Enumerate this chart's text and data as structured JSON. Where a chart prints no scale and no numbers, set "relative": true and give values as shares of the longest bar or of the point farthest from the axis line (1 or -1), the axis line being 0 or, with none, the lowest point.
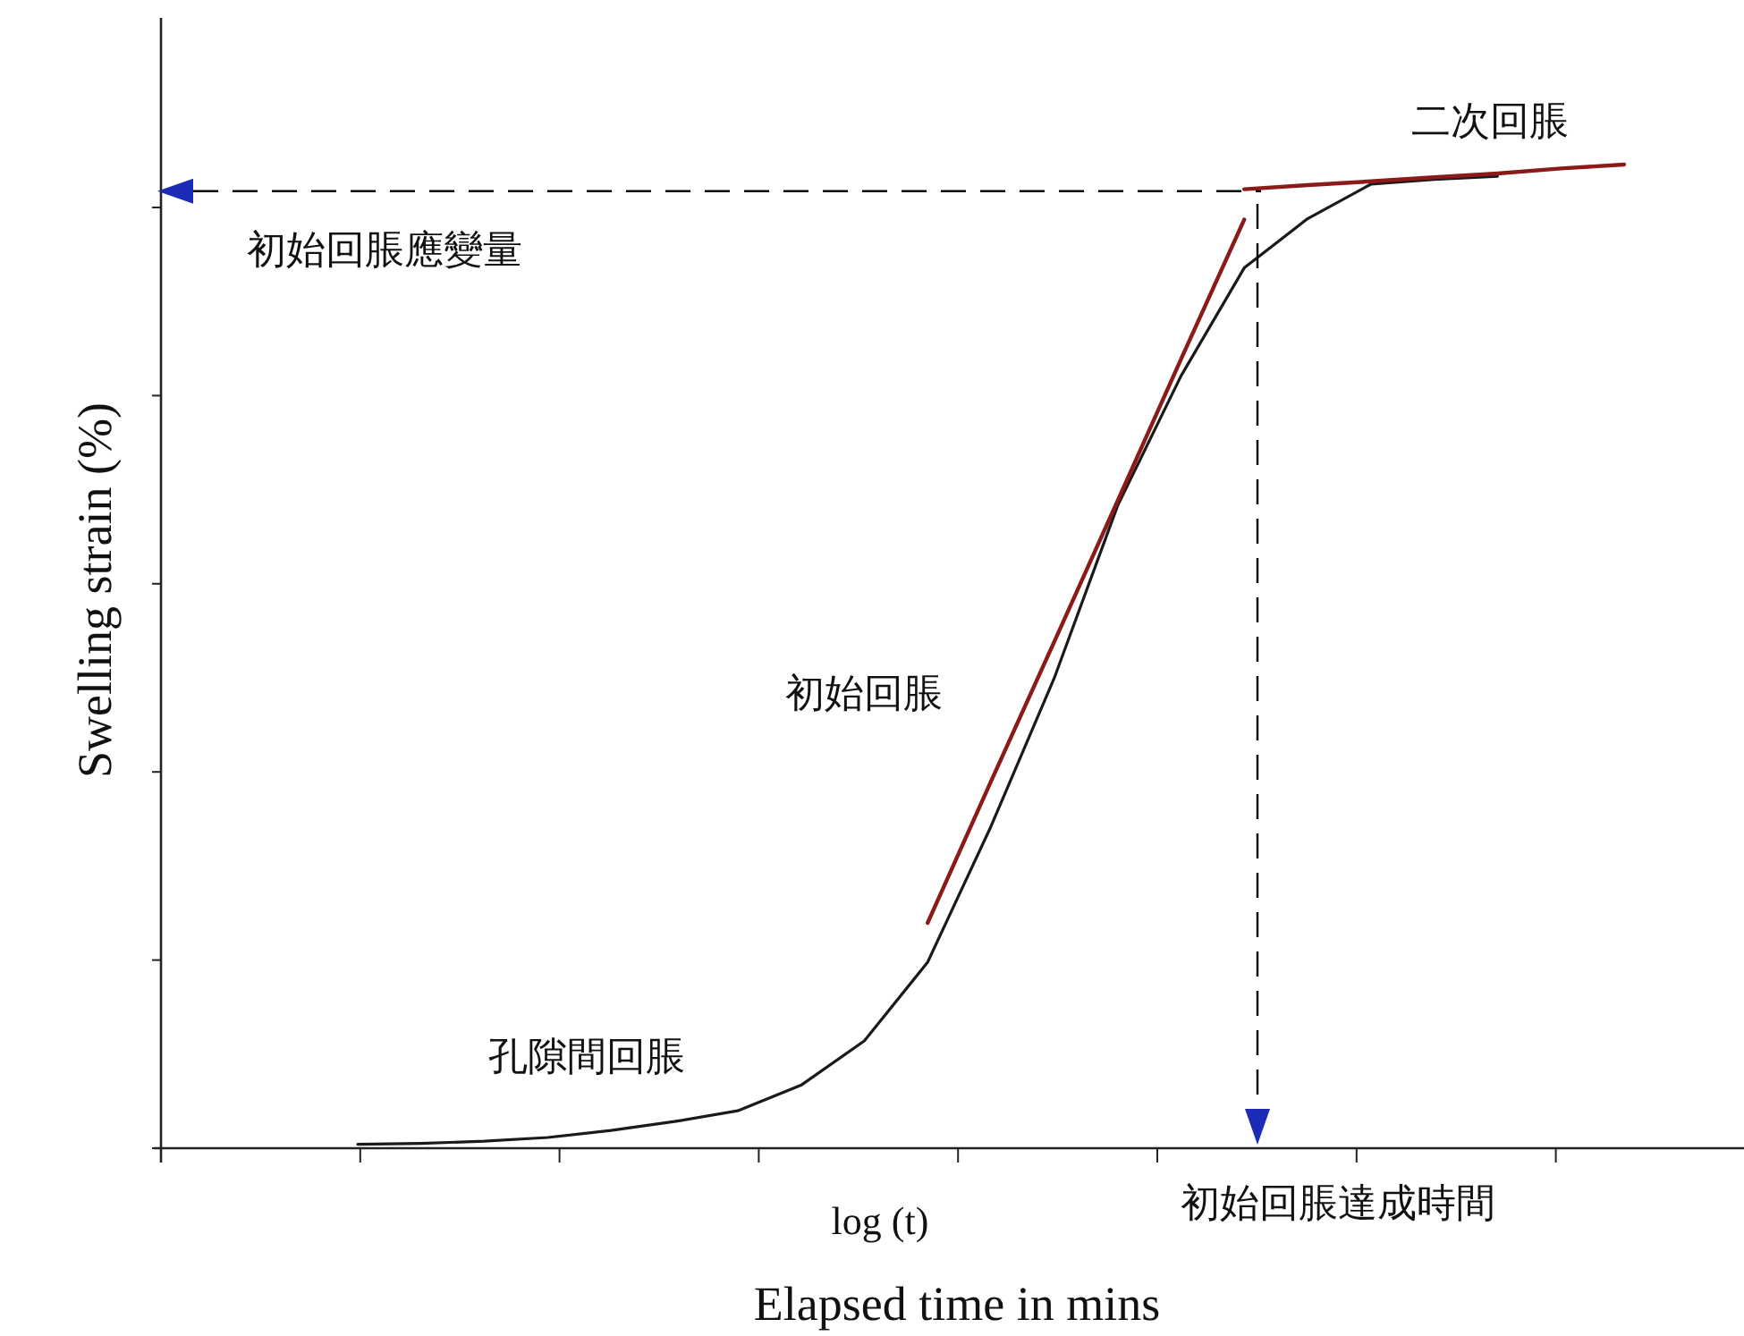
{
  "chart_data": {
    "type": "line",
    "relative": true,
    "xlabel": "Elapsed time in mins",
    "ylabel": "Swelling strain (%)",
    "categories": [
      null,
      null,
      null,
      null,
      null,
      null,
      null,
      null,
      null,
      null,
      null,
      null,
      null,
      null,
      null,
      null,
      null,
      null,
      null,
      null,
      null
    ],
    "series": [
      {
        "color": "#1a1a1a",
        "values": [
          0.004,
          0.005,
          0.007,
          0.011,
          0.018,
          0.027,
          0.038,
          0.064,
          0.109,
          0.189,
          0.327,
          0.478,
          0.653,
          0.785,
          0.895,
          0.945,
          0.98,
          0.985,
          0.988,
          null,
          null
        ]
      },
      {
        "color": "#8b1a1a",
        "values": [
          null,
          null,
          null,
          null,
          null,
          null,
          null,
          null,
          null,
          0.229,
          0.373,
          0.515,
          0.658,
          0.802,
          0.944,
          null,
          null,
          null,
          null,
          null,
          null
        ]
      },
      {
        "color": "#8b1a1a",
        "values": [
          null,
          null,
          null,
          null,
          null,
          null,
          null,
          null,
          null,
          null,
          null,
          null,
          null,
          null,
          0.975,
          0.979,
          0.983,
          0.987,
          0.991,
          0.996,
          1.0
        ]
      }
    ],
    "ref_lines": [
      {
        "axis": "y",
        "value": 0.973,
        "label": "初始回脹應變量",
        "line_style": "dashed",
        "color": "#000000"
      }
    ],
    "annotations": [
      "孔隙間回脹",
      "初始回脹",
      "二次回脹",
      "log (t)",
      "初始回脹達成時間"
    ],
    "marker": "none",
    "line_style": "solid"
  }
}
